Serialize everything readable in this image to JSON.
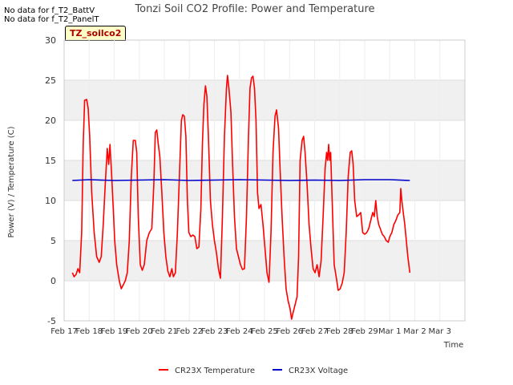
{
  "notes": [
    "No data for f_T2_BattV",
    "No data for f_T2_PanelT"
  ],
  "site_badge": "TZ_soilco2",
  "colors": {
    "temperature": "#ff0000",
    "voltage": "#0000cc",
    "band": "#f0f0f0"
  },
  "chart_data": {
    "type": "line",
    "title": "Tonzi Soil CO2 Profile: Power and Temperature",
    "xlabel": "Time",
    "ylabel": "Power (V) / Temperature (C)",
    "ylim": [
      -5,
      30
    ],
    "yticks": [
      -5,
      0,
      5,
      10,
      15,
      20,
      25,
      30
    ],
    "xlim": [
      0,
      16
    ],
    "xticks": [
      {
        "x": 0,
        "label": "Feb 17"
      },
      {
        "x": 1,
        "label": "Feb 18"
      },
      {
        "x": 2,
        "label": "Feb 19"
      },
      {
        "x": 3,
        "label": "Feb 20"
      },
      {
        "x": 4,
        "label": "Feb 21"
      },
      {
        "x": 5,
        "label": "Feb 22"
      },
      {
        "x": 6,
        "label": "Feb 23"
      },
      {
        "x": 7,
        "label": "Feb 24"
      },
      {
        "x": 8,
        "label": "Feb 25"
      },
      {
        "x": 9,
        "label": "Feb 26"
      },
      {
        "x": 10,
        "label": "Feb 27"
      },
      {
        "x": 11,
        "label": "Feb 28"
      },
      {
        "x": 12,
        "label": "Feb 29"
      },
      {
        "x": 13,
        "label": "Mar 1"
      },
      {
        "x": 14,
        "label": "Mar 2"
      },
      {
        "x": 15,
        "label": "Mar 3"
      }
    ],
    "grid": true,
    "legend_position": "bottom",
    "series": [
      {
        "name": "CR23X Temperature",
        "color": "#ff0000",
        "points": [
          [
            0.33,
            1.0
          ],
          [
            0.4,
            0.5
          ],
          [
            0.48,
            0.8
          ],
          [
            0.55,
            1.5
          ],
          [
            0.62,
            1.0
          ],
          [
            0.7,
            6
          ],
          [
            0.76,
            17
          ],
          [
            0.82,
            22.5
          ],
          [
            0.9,
            22.6
          ],
          [
            0.96,
            21.5
          ],
          [
            1.02,
            18
          ],
          [
            1.1,
            11
          ],
          [
            1.2,
            6
          ],
          [
            1.3,
            3
          ],
          [
            1.4,
            2.3
          ],
          [
            1.48,
            3
          ],
          [
            1.56,
            7
          ],
          [
            1.64,
            12
          ],
          [
            1.72,
            16.5
          ],
          [
            1.78,
            14.5
          ],
          [
            1.83,
            17
          ],
          [
            1.9,
            13
          ],
          [
            1.96,
            9
          ],
          [
            2.02,
            5
          ],
          [
            2.1,
            2
          ],
          [
            2.2,
            0
          ],
          [
            2.28,
            -1
          ],
          [
            2.36,
            -0.5
          ],
          [
            2.44,
            0
          ],
          [
            2.52,
            1
          ],
          [
            2.6,
            5
          ],
          [
            2.68,
            13
          ],
          [
            2.76,
            17.5
          ],
          [
            2.84,
            17.5
          ],
          [
            2.9,
            16
          ],
          [
            2.96,
            8
          ],
          [
            3.04,
            2
          ],
          [
            3.12,
            1.3
          ],
          [
            3.2,
            2
          ],
          [
            3.3,
            5
          ],
          [
            3.4,
            6
          ],
          [
            3.5,
            6.5
          ],
          [
            3.58,
            12
          ],
          [
            3.64,
            18.5
          ],
          [
            3.7,
            18.8
          ],
          [
            3.76,
            17
          ],
          [
            3.82,
            15.5
          ],
          [
            3.9,
            11
          ],
          [
            3.98,
            6
          ],
          [
            4.06,
            3
          ],
          [
            4.14,
            1.2
          ],
          [
            4.22,
            0.5
          ],
          [
            4.3,
            1.5
          ],
          [
            4.36,
            0.5
          ],
          [
            4.44,
            1
          ],
          [
            4.52,
            6
          ],
          [
            4.6,
            13
          ],
          [
            4.68,
            20
          ],
          [
            4.74,
            20.7
          ],
          [
            4.8,
            20.5
          ],
          [
            4.86,
            18
          ],
          [
            4.92,
            10
          ],
          [
            4.98,
            6
          ],
          [
            5.06,
            5.5
          ],
          [
            5.14,
            5.7
          ],
          [
            5.22,
            5.5
          ],
          [
            5.3,
            4
          ],
          [
            5.38,
            4.2
          ],
          [
            5.46,
            9
          ],
          [
            5.52,
            17
          ],
          [
            5.58,
            22
          ],
          [
            5.64,
            24.3
          ],
          [
            5.7,
            23
          ],
          [
            5.76,
            18
          ],
          [
            5.84,
            10
          ],
          [
            5.92,
            7
          ],
          [
            6.0,
            5
          ],
          [
            6.08,
            3.5
          ],
          [
            6.16,
            1.5
          ],
          [
            6.24,
            0.3
          ],
          [
            6.32,
            8
          ],
          [
            6.4,
            18
          ],
          [
            6.48,
            24
          ],
          [
            6.52,
            25.6
          ],
          [
            6.58,
            24
          ],
          [
            6.66,
            21
          ],
          [
            6.72,
            15
          ],
          [
            6.8,
            8
          ],
          [
            6.88,
            4
          ],
          [
            6.96,
            3
          ],
          [
            7.04,
            2
          ],
          [
            7.12,
            1.4
          ],
          [
            7.2,
            1.5
          ],
          [
            7.28,
            8
          ],
          [
            7.36,
            18
          ],
          [
            7.42,
            24
          ],
          [
            7.48,
            25.3
          ],
          [
            7.54,
            25.5
          ],
          [
            7.6,
            24
          ],
          [
            7.66,
            20
          ],
          [
            7.72,
            11
          ],
          [
            7.78,
            9
          ],
          [
            7.86,
            9.5
          ],
          [
            7.94,
            7
          ],
          [
            8.02,
            4
          ],
          [
            8.1,
            1
          ],
          [
            8.18,
            -0.2
          ],
          [
            8.26,
            6
          ],
          [
            8.34,
            16
          ],
          [
            8.42,
            20.5
          ],
          [
            8.48,
            21.3
          ],
          [
            8.56,
            19
          ],
          [
            8.62,
            14
          ],
          [
            8.7,
            8
          ],
          [
            8.78,
            3
          ],
          [
            8.86,
            -1
          ],
          [
            8.94,
            -2.5
          ],
          [
            9.02,
            -3.5
          ],
          [
            9.08,
            -4.8
          ],
          [
            9.14,
            -4
          ],
          [
            9.22,
            -3
          ],
          [
            9.3,
            -2
          ],
          [
            9.36,
            3
          ],
          [
            9.42,
            15
          ],
          [
            9.5,
            17.5
          ],
          [
            9.56,
            18
          ],
          [
            9.62,
            16
          ],
          [
            9.7,
            12
          ],
          [
            9.78,
            7
          ],
          [
            9.86,
            4
          ],
          [
            9.94,
            1.5
          ],
          [
            10.02,
            1
          ],
          [
            10.1,
            2
          ],
          [
            10.18,
            0.5
          ],
          [
            10.26,
            2.5
          ],
          [
            10.34,
            8
          ],
          [
            10.42,
            14
          ],
          [
            10.48,
            16
          ],
          [
            10.52,
            15
          ],
          [
            10.56,
            17
          ],
          [
            10.6,
            15
          ],
          [
            10.64,
            16
          ],
          [
            10.7,
            10
          ],
          [
            10.78,
            2
          ],
          [
            10.86,
            0.5
          ],
          [
            10.94,
            -1.2
          ],
          [
            11.02,
            -1
          ],
          [
            11.1,
            -0.3
          ],
          [
            11.18,
            1
          ],
          [
            11.26,
            6
          ],
          [
            11.34,
            13
          ],
          [
            11.42,
            16
          ],
          [
            11.48,
            16.2
          ],
          [
            11.54,
            14.5
          ],
          [
            11.6,
            10
          ],
          [
            11.68,
            8
          ],
          [
            11.76,
            8.2
          ],
          [
            11.84,
            8.5
          ],
          [
            11.92,
            6
          ],
          [
            12.0,
            5.8
          ],
          [
            12.08,
            6
          ],
          [
            12.16,
            6.5
          ],
          [
            12.24,
            7.5
          ],
          [
            12.32,
            8.5
          ],
          [
            12.38,
            8
          ],
          [
            12.44,
            10
          ],
          [
            12.5,
            8
          ],
          [
            12.56,
            7
          ],
          [
            12.62,
            6.5
          ],
          [
            12.7,
            5.8
          ],
          [
            12.78,
            5.5
          ],
          [
            12.86,
            5
          ],
          [
            12.94,
            4.8
          ],
          [
            13.0,
            5.5
          ],
          [
            13.08,
            6
          ],
          [
            13.16,
            7
          ],
          [
            13.24,
            7.5
          ],
          [
            13.32,
            8.2
          ],
          [
            13.4,
            8.5
          ],
          [
            13.44,
            11.5
          ],
          [
            13.48,
            10
          ],
          [
            13.54,
            8.5
          ],
          [
            13.6,
            7
          ],
          [
            13.66,
            5
          ],
          [
            13.72,
            3
          ],
          [
            13.8,
            1
          ]
        ]
      },
      {
        "name": "CR23X Voltage",
        "color": "#0000cc",
        "points": [
          [
            0.33,
            12.5
          ],
          [
            1.0,
            12.6
          ],
          [
            2.0,
            12.5
          ],
          [
            3.0,
            12.55
          ],
          [
            4.0,
            12.6
          ],
          [
            5.0,
            12.5
          ],
          [
            6.0,
            12.55
          ],
          [
            7.0,
            12.6
          ],
          [
            8.0,
            12.55
          ],
          [
            9.0,
            12.5
          ],
          [
            10.0,
            12.55
          ],
          [
            11.0,
            12.5
          ],
          [
            12.0,
            12.6
          ],
          [
            13.0,
            12.6
          ],
          [
            13.8,
            12.5
          ]
        ]
      }
    ]
  }
}
